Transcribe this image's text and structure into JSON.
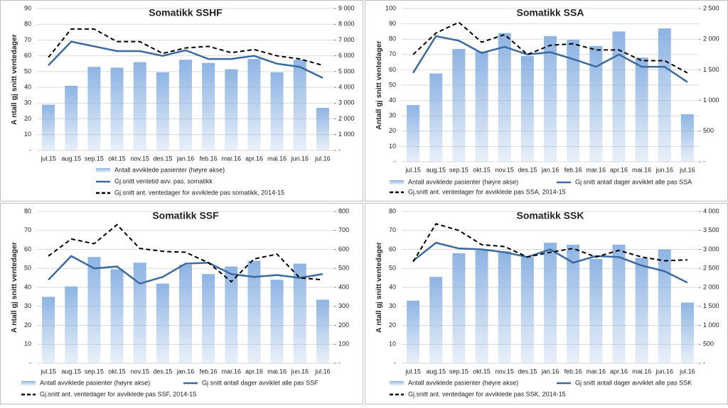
{
  "chart_data": [
    {
      "type": "bar-line",
      "title": "Somatikk SSHF",
      "y_label": "A ntall gj snitt ventedager",
      "categories": [
        "jul.15",
        "aug.15",
        "sep.15",
        "okt.15",
        "nov.15",
        "des.15",
        "jan.16",
        "feb.16",
        "mar.16",
        "apr.16",
        "mai.16",
        "jun.16",
        "jul.16"
      ],
      "ylim": [
        0,
        90
      ],
      "yticks": [
        {
          "value": 0,
          "label": "-"
        },
        10,
        20,
        30,
        40,
        50,
        60,
        70,
        80,
        90
      ],
      "y2lim": [
        0,
        9000
      ],
      "y2ticks": [
        {
          "value": 0,
          "label": "-"
        },
        {
          "value": 1000,
          "label": "1 000"
        },
        {
          "value": 2000,
          "label": "2 000"
        },
        {
          "value": 3000,
          "label": "3 000"
        },
        {
          "value": 4000,
          "label": "4 000"
        },
        {
          "value": 5000,
          "label": "5 000"
        },
        {
          "value": 6000,
          "label": "6 000"
        },
        {
          "value": 7000,
          "label": "7 000"
        },
        {
          "value": 8000,
          "label": "8 000"
        },
        {
          "value": 9000,
          "label": "9 000"
        }
      ],
      "grid": true,
      "series": [
        {
          "name": "Antall avviklede pasienter (høyre akse)",
          "type": "bar",
          "axis": "y2",
          "color": "#8eb4e3",
          "values": [
            2900,
            4100,
            5300,
            5250,
            5600,
            4950,
            5750,
            5550,
            5150,
            5800,
            4950,
            5750,
            2700
          ]
        },
        {
          "name": "Gj.snitt ventetid avv. pas. somatikk",
          "type": "line",
          "color": "#3a6a9f",
          "values": [
            54,
            69,
            66,
            63,
            63,
            60,
            63.5,
            58,
            58,
            60,
            55,
            53,
            46
          ]
        },
        {
          "name": "Gj.snitt ant. ventedager for avviklede pas somatikk, 2014-15",
          "type": "line",
          "dashed": true,
          "color": "#000000",
          "values": [
            59,
            77,
            77,
            69,
            69,
            61.5,
            65,
            66,
            62,
            64,
            60,
            58,
            54
          ]
        }
      ]
    },
    {
      "type": "bar-line",
      "title": "Somatikk SSA",
      "y_label": "Antall gj snitt ventedager",
      "categories": [
        "jul.15",
        "aug.15",
        "sep.15",
        "okt.15",
        "nov.15",
        "des.15",
        "jan.16",
        "feb.16",
        "mar.16",
        "apr.16",
        "mai.16",
        "jun.16",
        "jul.16"
      ],
      "ylim": [
        0,
        100
      ],
      "yticks": [
        {
          "value": 0,
          "label": "-"
        },
        10,
        20,
        30,
        40,
        50,
        60,
        70,
        80,
        90,
        100
      ],
      "y2lim": [
        0,
        2500
      ],
      "y2ticks": [
        {
          "value": 0,
          "label": "-"
        },
        500,
        {
          "value": 1000,
          "label": "1 000"
        },
        {
          "value": 1500,
          "label": "1 500"
        },
        {
          "value": 2000,
          "label": "2 000"
        },
        {
          "value": 2500,
          "label": "2 500"
        }
      ],
      "grid": true,
      "series": [
        {
          "name": "Antall avviklede pasienter (høyre akse)",
          "type": "bar",
          "axis": "y2",
          "color": "#8eb4e3",
          "values": [
            925,
            1440,
            1840,
            1800,
            2100,
            1725,
            2050,
            1990,
            1890,
            2125,
            1700,
            2175,
            775
          ]
        },
        {
          "name": "Gj snitt antall dager avviklet alle pas SSA",
          "type": "line",
          "color": "#3a6a9f",
          "values": [
            58,
            82,
            79,
            71,
            75,
            70,
            71.5,
            67,
            62,
            70,
            62,
            62,
            52
          ]
        },
        {
          "name": "Gj.snitt ant. ventedager for avviklede pas SSA, 2014-15",
          "type": "line",
          "dashed": true,
          "color": "#000000",
          "values": [
            70,
            84,
            91,
            78,
            83,
            70,
            76,
            77,
            73,
            73,
            66,
            66,
            58
          ]
        }
      ]
    },
    {
      "type": "bar-line",
      "title": "Somatikk SSF",
      "y_label": "A ntall gj snitt ventedager",
      "categories": [
        "jul.15",
        "aug.15",
        "sep.15",
        "okt.15",
        "nov.15",
        "des.15",
        "jan.16",
        "feb.16",
        "mar.16",
        "apr.16",
        "mai.16",
        "jun.16",
        "jul.16"
      ],
      "ylim": [
        0,
        80
      ],
      "yticks": [
        {
          "value": 0,
          "label": "-"
        },
        10,
        20,
        30,
        40,
        50,
        60,
        70,
        80
      ],
      "y2lim": [
        0,
        800
      ],
      "y2ticks": [
        {
          "value": 0,
          "label": "-"
        },
        100,
        200,
        300,
        400,
        500,
        600,
        700,
        800
      ],
      "grid": true,
      "series": [
        {
          "name": "Antall avviklede pasienter (høyre akse)",
          "type": "bar",
          "axis": "y2",
          "color": "#8eb4e3",
          "values": [
            350,
            405,
            560,
            495,
            530,
            420,
            520,
            470,
            510,
            540,
            440,
            525,
            335
          ]
        },
        {
          "name": "Gj snitt antall dager avviklet alle pas SSF",
          "type": "line",
          "color": "#3a6a9f",
          "values": [
            44,
            56.5,
            50,
            51,
            42,
            45.5,
            52.5,
            53,
            47,
            45.5,
            46.5,
            45,
            47
          ]
        },
        {
          "name": "Gj.snitt ant. ventedager for avviklede pas SSF, 2014-15",
          "type": "line",
          "dashed": true,
          "color": "#000000",
          "values": [
            56.5,
            65.5,
            63,
            73,
            60.5,
            59,
            58.5,
            53,
            43,
            55,
            57.5,
            45,
            44
          ]
        }
      ]
    },
    {
      "type": "bar-line",
      "title": "Somatikk SSK",
      "y_label": "A ntall gj snitt ventedager",
      "categories": [
        "jul.15",
        "aug.15",
        "sep.15",
        "okt.15",
        "nov.15",
        "des.15",
        "jan.16",
        "feb.16",
        "mar.16",
        "apr.16",
        "mai.16",
        "jun.16",
        "jul.16"
      ],
      "ylim": [
        0,
        80
      ],
      "yticks": [
        {
          "value": 0,
          "label": "-"
        },
        10,
        20,
        30,
        40,
        50,
        60,
        70,
        80
      ],
      "y2lim": [
        0,
        4000
      ],
      "y2ticks": [
        {
          "value": 0,
          "label": "-"
        },
        500,
        {
          "value": 1000,
          "label": "1 000"
        },
        {
          "value": 1500,
          "label": "1 500"
        },
        {
          "value": 2000,
          "label": "2 000"
        },
        {
          "value": 2500,
          "label": "2 500"
        },
        {
          "value": 3000,
          "label": "3 000"
        },
        {
          "value": 3500,
          "label": "3 500"
        },
        {
          "value": 4000,
          "label": "4 000"
        }
      ],
      "grid": true,
      "series": [
        {
          "name": "Antall avviklede pasienter (høyre akse)",
          "type": "bar",
          "axis": "y2",
          "color": "#8eb4e3",
          "values": [
            1650,
            2275,
            2900,
            2975,
            2950,
            2800,
            3175,
            3125,
            2750,
            3125,
            2775,
            3000,
            1600
          ]
        },
        {
          "name": "Gj snitt antall dager avviklet alle pas SSK",
          "type": "line",
          "color": "#3a6a9f",
          "values": [
            54,
            63.5,
            60.5,
            60,
            58.5,
            56,
            60,
            53,
            56.5,
            56,
            51.5,
            48.5,
            42.5
          ]
        },
        {
          "name": "Gj.snitt ant. ventedager for avviklede pas SSK, 2014-15",
          "type": "line",
          "dashed": true,
          "color": "#000000",
          "values": [
            53.5,
            73.5,
            70,
            62.5,
            61.5,
            56,
            58.5,
            60.5,
            56,
            59.5,
            56,
            54,
            54.5
          ]
        }
      ]
    }
  ]
}
